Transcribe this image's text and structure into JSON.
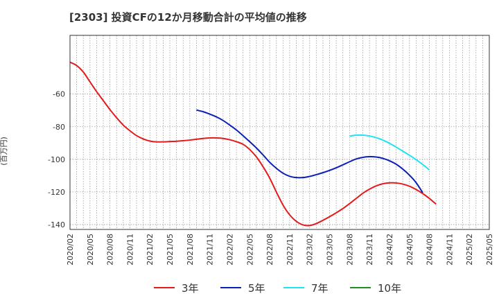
{
  "chart_data": {
    "type": "line",
    "title": "[2303]  投資CFの12か月移動合計の平均値の推移",
    "ylabel": "(百万円)",
    "xlabel": "",
    "x_tick_labels": [
      "2020/02",
      "2020/05",
      "2020/08",
      "2020/11",
      "2021/02",
      "2021/05",
      "2021/08",
      "2021/11",
      "2022/02",
      "2022/05",
      "2022/08",
      "2022/11",
      "2023/02",
      "2023/05",
      "2023/08",
      "2023/11",
      "2024/02",
      "2024/05",
      "2024/08",
      "2024/11",
      "2025/02",
      "2025/05"
    ],
    "y_ticks": [
      -60,
      -80,
      -100,
      -120,
      -140
    ],
    "ylim": [
      -143,
      -24
    ],
    "grid": true,
    "legend_position": "bottom",
    "series": [
      {
        "name": "3年",
        "color": "#e31a1c",
        "points": [
          [
            "2020/02",
            -40.5
          ],
          [
            "2020/03",
            -42.5
          ],
          [
            "2020/04",
            -46.5
          ],
          [
            "2020/05",
            -52.5
          ],
          [
            "2020/06",
            -58.5
          ],
          [
            "2020/07",
            -64.0
          ],
          [
            "2020/08",
            -69.5
          ],
          [
            "2020/09",
            -74.5
          ],
          [
            "2020/10",
            -79.0
          ],
          [
            "2020/11",
            -82.5
          ],
          [
            "2020/12",
            -85.5
          ],
          [
            "2021/01",
            -87.5
          ],
          [
            "2021/02",
            -88.8
          ],
          [
            "2021/03",
            -89.3
          ],
          [
            "2021/04",
            -89.3
          ],
          [
            "2021/05",
            -89.1
          ],
          [
            "2021/06",
            -88.9
          ],
          [
            "2021/07",
            -88.6
          ],
          [
            "2021/08",
            -88.2
          ],
          [
            "2021/09",
            -87.7
          ],
          [
            "2021/10",
            -87.2
          ],
          [
            "2021/11",
            -86.9
          ],
          [
            "2021/12",
            -86.9
          ],
          [
            "2022/01",
            -87.2
          ],
          [
            "2022/02",
            -88.0
          ],
          [
            "2022/03",
            -89.2
          ],
          [
            "2022/04",
            -90.8
          ],
          [
            "2022/05",
            -94.0
          ],
          [
            "2022/06",
            -98.5
          ],
          [
            "2022/07",
            -104.5
          ],
          [
            "2022/08",
            -111.5
          ],
          [
            "2022/09",
            -120.0
          ],
          [
            "2022/10",
            -128.0
          ],
          [
            "2022/11",
            -134.0
          ],
          [
            "2022/12",
            -138.0
          ],
          [
            "2023/01",
            -140.2
          ],
          [
            "2023/02",
            -140.6
          ],
          [
            "2023/03",
            -139.4
          ],
          [
            "2023/04",
            -137.4
          ],
          [
            "2023/05",
            -135.2
          ],
          [
            "2023/06",
            -132.8
          ],
          [
            "2023/07",
            -130.2
          ],
          [
            "2023/08",
            -127.2
          ],
          [
            "2023/09",
            -124.0
          ],
          [
            "2023/10",
            -120.8
          ],
          [
            "2023/11",
            -118.3
          ],
          [
            "2023/12",
            -116.3
          ],
          [
            "2024/01",
            -115.0
          ],
          [
            "2024/02",
            -114.4
          ],
          [
            "2024/03",
            -114.5
          ],
          [
            "2024/04",
            -115.2
          ],
          [
            "2024/05",
            -116.5
          ],
          [
            "2024/06",
            -118.5
          ],
          [
            "2024/07",
            -121.0
          ],
          [
            "2024/08",
            -124.0
          ],
          [
            "2024/09",
            -127.5
          ]
        ]
      },
      {
        "name": "5年",
        "color": "#0a1fb8",
        "points": [
          [
            "2021/09",
            -69.8
          ],
          [
            "2021/10",
            -70.8
          ],
          [
            "2021/11",
            -72.3
          ],
          [
            "2021/12",
            -74.0
          ],
          [
            "2022/01",
            -76.2
          ],
          [
            "2022/02",
            -79.0
          ],
          [
            "2022/03",
            -82.0
          ],
          [
            "2022/04",
            -85.5
          ],
          [
            "2022/05",
            -89.2
          ],
          [
            "2022/06",
            -93.0
          ],
          [
            "2022/07",
            -97.3
          ],
          [
            "2022/08",
            -101.8
          ],
          [
            "2022/09",
            -105.5
          ],
          [
            "2022/10",
            -108.5
          ],
          [
            "2022/11",
            -110.4
          ],
          [
            "2022/12",
            -111.2
          ],
          [
            "2023/01",
            -111.2
          ],
          [
            "2023/02",
            -110.5
          ],
          [
            "2023/03",
            -109.4
          ],
          [
            "2023/04",
            -108.2
          ],
          [
            "2023/05",
            -106.8
          ],
          [
            "2023/06",
            -105.2
          ],
          [
            "2023/07",
            -103.4
          ],
          [
            "2023/08",
            -101.5
          ],
          [
            "2023/09",
            -99.8
          ],
          [
            "2023/10",
            -98.8
          ],
          [
            "2023/11",
            -98.4
          ],
          [
            "2023/12",
            -98.6
          ],
          [
            "2024/01",
            -99.4
          ],
          [
            "2024/02",
            -100.9
          ],
          [
            "2024/03",
            -103.0
          ],
          [
            "2024/04",
            -106.0
          ],
          [
            "2024/05",
            -109.7
          ],
          [
            "2024/06",
            -114.3
          ],
          [
            "2024/07",
            -120.5
          ]
        ]
      },
      {
        "name": "7年",
        "color": "#1ee3f0",
        "points": [
          [
            "2023/08",
            -85.8
          ],
          [
            "2023/09",
            -85.2
          ],
          [
            "2023/10",
            -85.2
          ],
          [
            "2023/11",
            -85.7
          ],
          [
            "2023/12",
            -86.7
          ],
          [
            "2024/01",
            -88.2
          ],
          [
            "2024/02",
            -90.2
          ],
          [
            "2024/03",
            -92.5
          ],
          [
            "2024/04",
            -95.0
          ],
          [
            "2024/05",
            -97.5
          ],
          [
            "2024/06",
            -100.2
          ],
          [
            "2024/07",
            -103.2
          ],
          [
            "2024/08",
            -106.5
          ]
        ]
      },
      {
        "name": "10年",
        "color": "#228b22",
        "points": []
      }
    ]
  }
}
